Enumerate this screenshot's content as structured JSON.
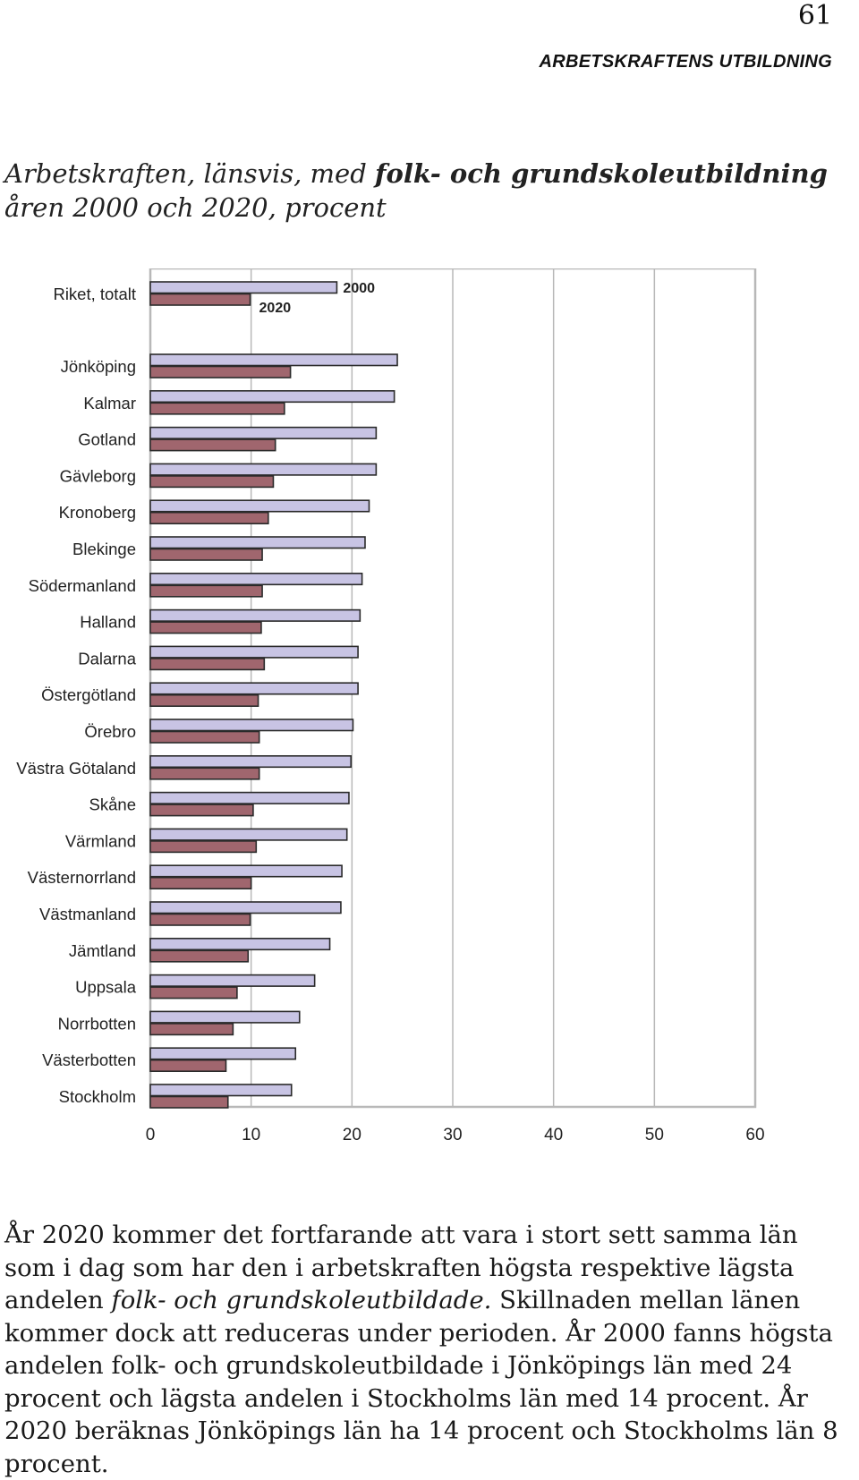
{
  "page": {
    "number": "61",
    "running_header": "ARBETSKRAFTENS UTBILDNING"
  },
  "title": {
    "part1": "Arbetskraften, länsvis, med ",
    "bold": "folk- och grundskoleutbildning",
    "part2": " åren 2000 och 2020, procent"
  },
  "chart_data": {
    "type": "bar",
    "orientation": "horizontal",
    "categories": [
      "Riket, totalt",
      "Jönköping",
      "Kalmar",
      "Gotland",
      "Gävleborg",
      "Kronoberg",
      "Blekinge",
      "Södermanland",
      "Halland",
      "Dalarna",
      "Östergötland",
      "Örebro",
      "Västra Götaland",
      "Skåne",
      "Värmland",
      "Västernorrland",
      "Västmanland",
      "Jämtland",
      "Uppsala",
      "Norrbotten",
      "Västerbotten",
      "Stockholm"
    ],
    "series": [
      {
        "name": "2000",
        "color": "#c8c4e4",
        "values": [
          18.5,
          24.5,
          24.2,
          22.4,
          22.4,
          21.7,
          21.3,
          21.0,
          20.8,
          20.6,
          20.6,
          20.1,
          19.9,
          19.7,
          19.5,
          19.0,
          18.9,
          17.8,
          16.3,
          14.8,
          14.4,
          14.0
        ]
      },
      {
        "name": "2020",
        "color": "#a0666e",
        "values": [
          9.9,
          13.9,
          13.3,
          12.4,
          12.2,
          11.7,
          11.1,
          11.1,
          11.0,
          11.3,
          10.7,
          10.8,
          10.8,
          10.2,
          10.5,
          10.0,
          9.9,
          9.7,
          8.6,
          8.2,
          7.5,
          7.7
        ]
      }
    ],
    "xlim": [
      0,
      60
    ],
    "xticks": [
      "0",
      "10",
      "20",
      "30",
      "40",
      "50",
      "60"
    ],
    "grid": "vertical",
    "annotation_labels": {
      "series_2000": "2000",
      "series_2020": "2020"
    }
  },
  "body": {
    "p1": "År 2020 kommer det fortfarande att vara i stort sett samma län som i dag som har den i arbetskraften högsta respektive lägsta andelen ",
    "p1_italic": "folk- och grundskoleutbildade.",
    "p2": " Skillnaden mellan länen kommer dock att reduceras under perioden. År 2000 fanns högsta andelen folk- och grundskoleutbildade i Jönköpings län med 24 procent och lägsta andelen i Stockholms län med 14 procent. År 2020 beräknas Jönköpings län ha 14 procent och Stockholms län 8 procent."
  }
}
